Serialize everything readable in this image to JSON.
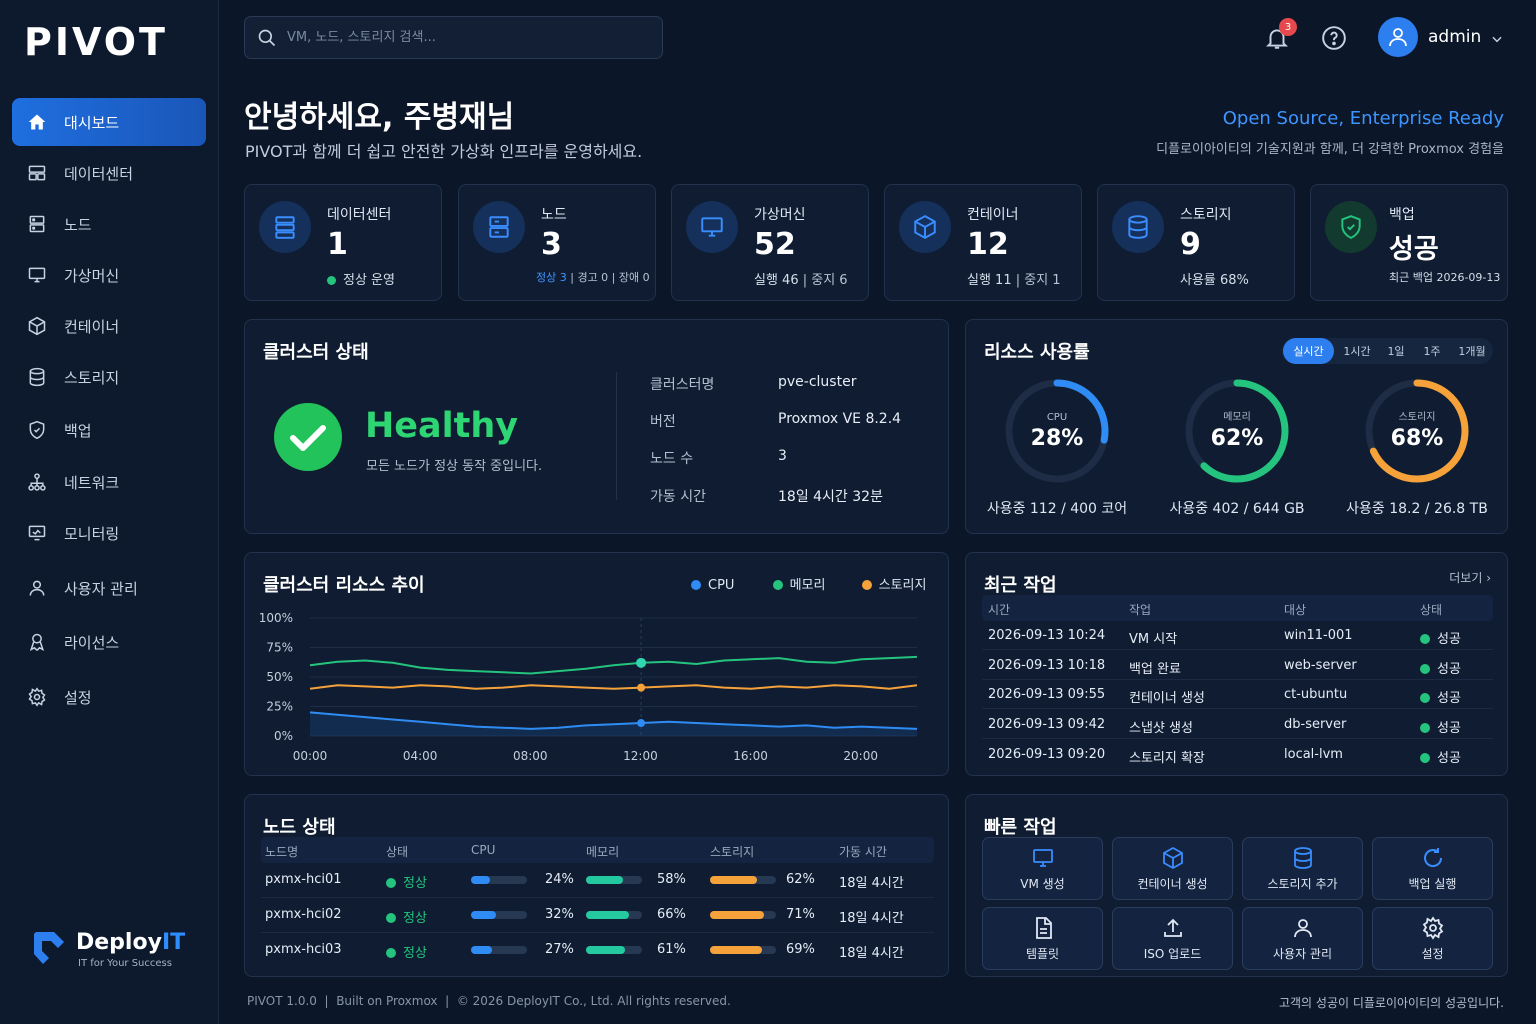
{
  "app": {
    "logo": "PIVOT"
  },
  "sidebar": {
    "items": [
      {
        "label": "대시보드",
        "icon": "home-icon",
        "active": true
      },
      {
        "label": "데이터센터",
        "icon": "datacenter-icon"
      },
      {
        "label": "노드",
        "icon": "server-icon"
      },
      {
        "label": "가상머신",
        "icon": "monitor-icon"
      },
      {
        "label": "컨테이너",
        "icon": "cube-icon"
      },
      {
        "label": "스토리지",
        "icon": "database-icon"
      },
      {
        "label": "백업",
        "icon": "shield-icon"
      },
      {
        "label": "네트워크",
        "icon": "network-icon"
      },
      {
        "label": "모니터링",
        "icon": "monitoring-icon"
      },
      {
        "label": "사용자 관리",
        "icon": "user-icon"
      },
      {
        "label": "라이선스",
        "icon": "license-icon"
      },
      {
        "label": "설정",
        "icon": "gear-icon"
      }
    ],
    "brand": {
      "name_a": "Deploy",
      "name_b": "IT",
      "tagline": "IT for Your Success"
    }
  },
  "header": {
    "search_placeholder": "VM, 노드, 스토리지 검색...",
    "notification_count": "3",
    "user": "admin"
  },
  "greeting": {
    "title": "안녕하세요, 주병재님",
    "subtitle": "PIVOT과 함께 더 쉽고 안전한 가상화 인프라를 운영하세요.",
    "slogan": "Open Source, Enterprise Ready",
    "slogan_sub": "디플로이아이티의 기술지원과 함께, 더 강력한 Proxmox 경험을"
  },
  "cards": [
    {
      "label": "데이터센터",
      "value": "1",
      "sub": "정상 운영",
      "icon": "datacenter-icon"
    },
    {
      "label": "노드",
      "value": "3",
      "sub_a": "정상 3",
      "sub_b": " | 경고 0 | 장애 0",
      "icon": "server-icon"
    },
    {
      "label": "가상머신",
      "value": "52",
      "sub_a": "실행 46",
      "sub_b": " | 중지 6",
      "icon": "monitor-icon"
    },
    {
      "label": "컨테이너",
      "value": "12",
      "sub_a": "실행 11",
      "sub_b": " | 중지 1",
      "icon": "cube-icon"
    },
    {
      "label": "스토리지",
      "value": "9",
      "sub": "사용률 68%",
      "icon": "database-icon"
    },
    {
      "label": "백업",
      "value": "성공",
      "sub": "최근 백업 2026-09-13",
      "icon": "shield-check-icon"
    }
  ],
  "cluster": {
    "title": "클러스터 상태",
    "status": "Healthy",
    "status_sub": "모든 노드가 정상 동작 중입니다.",
    "kv": [
      {
        "k": "클러스터명",
        "v": "pve-cluster"
      },
      {
        "k": "버전",
        "v": "Proxmox VE 8.2.4"
      },
      {
        "k": "노드 수",
        "v": "3"
      },
      {
        "k": "가동 시간",
        "v": "18일 4시간 32분"
      }
    ]
  },
  "resources": {
    "title": "리소스 사용률",
    "tabs": [
      "실시간",
      "1시간",
      "1일",
      "1주",
      "1개월"
    ],
    "gauges": [
      {
        "name": "CPU",
        "pct": 28,
        "pct_label": "28%",
        "detail": "사용중 112 / 400 코어",
        "color": "#2f8cf5"
      },
      {
        "name": "메모리",
        "pct": 62,
        "pct_label": "62%",
        "detail": "사용중 402 / 644 GB",
        "color": "#25c47e"
      },
      {
        "name": "스토리지",
        "pct": 68,
        "pct_label": "68%",
        "detail": "사용중 18.2 / 26.8 TB",
        "color": "#f6a23b"
      }
    ]
  },
  "trend": {
    "title": "클러스터 리소스 추이",
    "legend": [
      "CPU",
      "메모리",
      "스토리지"
    ]
  },
  "chart_data": {
    "type": "line",
    "title": "클러스터 리소스 추이",
    "x_ticks": [
      "00:00",
      "04:00",
      "08:00",
      "12:00",
      "16:00",
      "20:00"
    ],
    "y_ticks": [
      "100%",
      "75%",
      "50%",
      "25%",
      "0%"
    ],
    "ylim": [
      0,
      100
    ],
    "x_range_hours": [
      0,
      22
    ],
    "series": [
      {
        "name": "메모리",
        "color": "#25c47e",
        "values": [
          60,
          63,
          64,
          62,
          58,
          56,
          55,
          54,
          53,
          55,
          57,
          60,
          62,
          63,
          61,
          64,
          65,
          66,
          63,
          62,
          65,
          66,
          67
        ]
      },
      {
        "name": "스토리지",
        "color": "#f6a23b",
        "values": [
          40,
          43,
          42,
          41,
          43,
          42,
          40,
          41,
          43,
          42,
          41,
          40,
          41,
          42,
          43,
          41,
          40,
          42,
          41,
          43,
          42,
          40,
          43
        ]
      },
      {
        "name": "CPU",
        "color": "#2f8cf5",
        "values": [
          20,
          18,
          16,
          14,
          12,
          10,
          8,
          7,
          6,
          7,
          9,
          10,
          11,
          12,
          11,
          10,
          9,
          8,
          9,
          7,
          8,
          7,
          6
        ]
      }
    ]
  },
  "tasks": {
    "title": "최근 작업",
    "more": "더보기",
    "headers": [
      "시간",
      "작업",
      "대상",
      "상태"
    ],
    "rows": [
      {
        "time": "2026-09-13 10:24",
        "task": "VM 시작",
        "target": "win11-001",
        "status": "성공"
      },
      {
        "time": "2026-09-13 10:18",
        "task": "백업 완료",
        "target": "web-server",
        "status": "성공"
      },
      {
        "time": "2026-09-13 09:55",
        "task": "컨테이너 생성",
        "target": "ct-ubuntu",
        "status": "성공"
      },
      {
        "time": "2026-09-13 09:42",
        "task": "스냅샷 생성",
        "target": "db-server",
        "status": "성공"
      },
      {
        "time": "2026-09-13 09:20",
        "task": "스토리지 확장",
        "target": "local-lvm",
        "status": "성공"
      }
    ]
  },
  "nodes": {
    "title": "노드 상태",
    "headers": [
      "노드명",
      "상태",
      "CPU",
      "메모리",
      "스토리지",
      "가동 시간"
    ],
    "rows": [
      {
        "name": "pxmx-hci01",
        "status": "정상",
        "cpu": 24,
        "cpu_label": "24%",
        "mem": 58,
        "mem_label": "58%",
        "sto": 62,
        "sto_label": "62%",
        "uptime": "18일 4시간"
      },
      {
        "name": "pxmx-hci02",
        "status": "정상",
        "cpu": 32,
        "cpu_label": "32%",
        "mem": 66,
        "mem_label": "66%",
        "sto": 71,
        "sto_label": "71%",
        "uptime": "18일 4시간"
      },
      {
        "name": "pxmx-hci03",
        "status": "정상",
        "cpu": 27,
        "cpu_label": "27%",
        "mem": 61,
        "mem_label": "61%",
        "sto": 69,
        "sto_label": "69%",
        "uptime": "18일 4시간"
      }
    ]
  },
  "quick": {
    "title": "빠른 작업",
    "buttons": [
      {
        "label": "VM 생성",
        "icon": "monitor-icon"
      },
      {
        "label": "컨테이너 생성",
        "icon": "cube-icon"
      },
      {
        "label": "스토리지 추가",
        "icon": "database-icon"
      },
      {
        "label": "백업 실행",
        "icon": "refresh-icon"
      },
      {
        "label": "템플릿",
        "icon": "document-icon"
      },
      {
        "label": "ISO 업로드",
        "icon": "upload-icon"
      },
      {
        "label": "사용자 관리",
        "icon": "user-icon"
      },
      {
        "label": "설정",
        "icon": "gear-icon"
      }
    ]
  },
  "footer": {
    "left": "PIVOT 1.0.0  |  Built on Proxmox  |  © 2026 DeployIT Co., Ltd. All rights reserved.",
    "right": "고객의 성공이 디플로이아이티의 성공입니다."
  },
  "colors": {
    "accent": "#2d7ff0",
    "ok": "#25c47e",
    "warn": "#f6a23b",
    "bg": "#0b1628"
  }
}
